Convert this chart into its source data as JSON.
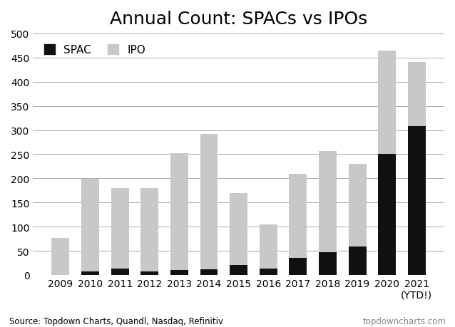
{
  "title": "Annual Count: SPACs vs IPOs",
  "years": [
    "2009",
    "2010",
    "2011",
    "2012",
    "2013",
    "2014",
    "2015",
    "2016",
    "2017",
    "2018",
    "2019",
    "2020",
    "2021\n(YTD!)"
  ],
  "spac": [
    0,
    7,
    13,
    8,
    10,
    12,
    20,
    13,
    35,
    47,
    59,
    250,
    308
  ],
  "ipo": [
    77,
    192,
    167,
    172,
    242,
    280,
    150,
    92,
    175,
    209,
    171,
    215,
    133
  ],
  "spac_color": "#111111",
  "ipo_color": "#c8c8c8",
  "ylim": [
    0,
    500
  ],
  "yticks": [
    0,
    50,
    100,
    150,
    200,
    250,
    300,
    350,
    400,
    450,
    500
  ],
  "ylabel": "",
  "xlabel": "",
  "source_text": "Source: Topdown Charts, Quandl, Nasdaq, Refinitiv",
  "watermark_text": "topdowncharts.com",
  "legend_spac": "SPAC",
  "legend_ipo": "IPO",
  "title_fontsize": 18,
  "tick_fontsize": 10,
  "source_fontsize": 8.5,
  "background_color": "#ffffff"
}
